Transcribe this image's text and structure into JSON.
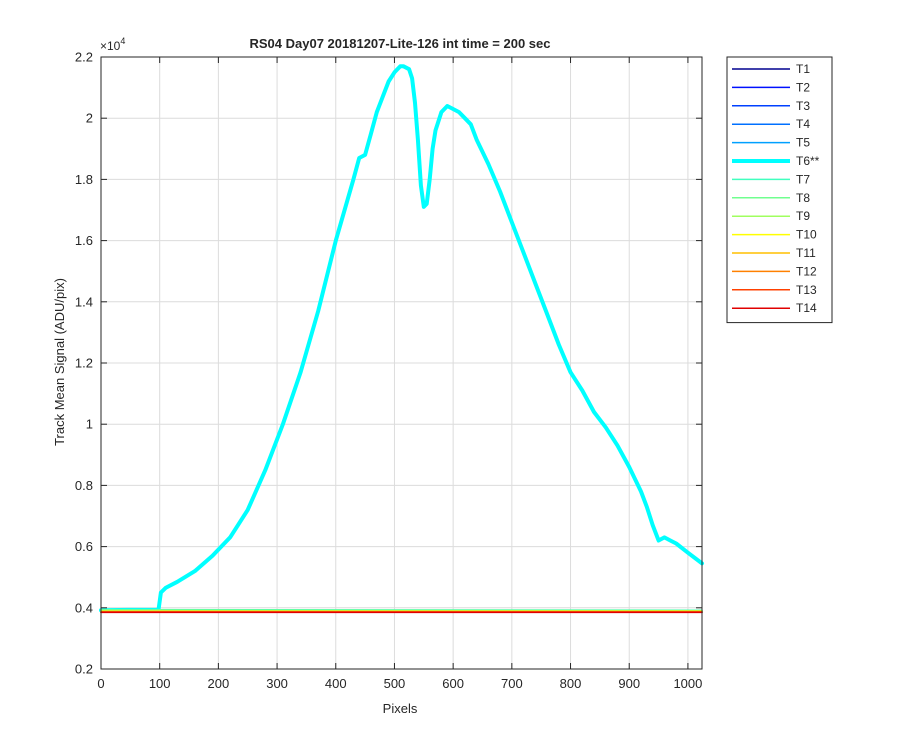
{
  "chart_data": {
    "type": "line",
    "title": "RS04 Day07 20181207-Lite-126 int time = 200 sec",
    "xlabel": "Pixels",
    "ylabel": "Track Mean Signal (ADU/pix)",
    "y_exponent_label": "×10",
    "y_exponent_power": "4",
    "xlim": [
      0,
      1024
    ],
    "ylim": [
      0.2,
      2.2
    ],
    "y_scale_note": "values in units of 1e4",
    "xticks": [
      0,
      100,
      200,
      300,
      400,
      500,
      600,
      700,
      800,
      900,
      1000
    ],
    "yticks": [
      0.2,
      0.4,
      0.6,
      0.8,
      1,
      1.2,
      1.4,
      1.6,
      1.8,
      2,
      2.2
    ],
    "grid": true,
    "legend_position": "outside-right-top",
    "series": [
      {
        "name": "T1",
        "color": "#00008f",
        "width": 1.5,
        "x": [
          0,
          1024
        ],
        "y": [
          0.386,
          0.386
        ]
      },
      {
        "name": "T2",
        "color": "#0010ff",
        "width": 1.5,
        "x": [
          0,
          1024
        ],
        "y": [
          0.386,
          0.386
        ]
      },
      {
        "name": "T3",
        "color": "#0040ff",
        "width": 1.5,
        "x": [
          0,
          1024
        ],
        "y": [
          0.387,
          0.387
        ]
      },
      {
        "name": "T4",
        "color": "#0070ff",
        "width": 1.5,
        "x": [
          0,
          1024
        ],
        "y": [
          0.388,
          0.388
        ]
      },
      {
        "name": "T5",
        "color": "#00a0ff",
        "width": 1.5,
        "x": [
          0,
          1024
        ],
        "y": [
          0.39,
          0.39
        ]
      },
      {
        "name": "T6**",
        "color": "#00ffff",
        "width": 4,
        "x": [
          0,
          50,
          98,
          102,
          110,
          130,
          160,
          190,
          220,
          250,
          280,
          310,
          340,
          370,
          400,
          430,
          440,
          450,
          460,
          470,
          480,
          490,
          500,
          510,
          515,
          525,
          530,
          535,
          540,
          545,
          550,
          555,
          560,
          565,
          570,
          580,
          590,
          600,
          610,
          620,
          630,
          640,
          650,
          660,
          680,
          700,
          720,
          740,
          760,
          780,
          800,
          820,
          840,
          860,
          880,
          900,
          910,
          920,
          930,
          940,
          950,
          960,
          970,
          980,
          1000,
          1024
        ],
        "y": [
          0.392,
          0.393,
          0.393,
          0.45,
          0.465,
          0.485,
          0.52,
          0.57,
          0.63,
          0.72,
          0.85,
          1.0,
          1.17,
          1.37,
          1.6,
          1.8,
          1.87,
          1.88,
          1.95,
          2.02,
          2.07,
          2.12,
          2.15,
          2.17,
          2.17,
          2.16,
          2.13,
          2.05,
          1.93,
          1.78,
          1.71,
          1.72,
          1.8,
          1.9,
          1.96,
          2.02,
          2.04,
          2.03,
          2.02,
          2.0,
          1.98,
          1.93,
          1.89,
          1.85,
          1.76,
          1.66,
          1.56,
          1.46,
          1.36,
          1.26,
          1.17,
          1.11,
          1.04,
          0.99,
          0.93,
          0.86,
          0.82,
          0.78,
          0.73,
          0.67,
          0.62,
          0.63,
          0.62,
          0.61,
          0.58,
          0.545
        ]
      },
      {
        "name": "T7",
        "color": "#40ffbf",
        "width": 1.5,
        "x": [
          0,
          1024
        ],
        "y": [
          0.394,
          0.392
        ]
      },
      {
        "name": "T8",
        "color": "#70ff8f",
        "width": 1.5,
        "x": [
          0,
          1024
        ],
        "y": [
          0.393,
          0.391
        ]
      },
      {
        "name": "T9",
        "color": "#a0ff5f",
        "width": 1.5,
        "x": [
          0,
          1024
        ],
        "y": [
          0.39,
          0.39
        ]
      },
      {
        "name": "T10",
        "color": "#ffff00",
        "width": 1.5,
        "x": [
          0,
          1024
        ],
        "y": [
          0.389,
          0.389
        ]
      },
      {
        "name": "T11",
        "color": "#ffbf00",
        "width": 1.5,
        "x": [
          0,
          1024
        ],
        "y": [
          0.388,
          0.388
        ]
      },
      {
        "name": "T12",
        "color": "#ff8000",
        "width": 1.5,
        "x": [
          0,
          1024
        ],
        "y": [
          0.387,
          0.387
        ]
      },
      {
        "name": "T13",
        "color": "#ff4000",
        "width": 1.5,
        "x": [
          0,
          1024
        ],
        "y": [
          0.386,
          0.386
        ]
      },
      {
        "name": "T14",
        "color": "#e00000",
        "width": 1.5,
        "x": [
          0,
          1024
        ],
        "y": [
          0.385,
          0.385
        ]
      }
    ]
  }
}
